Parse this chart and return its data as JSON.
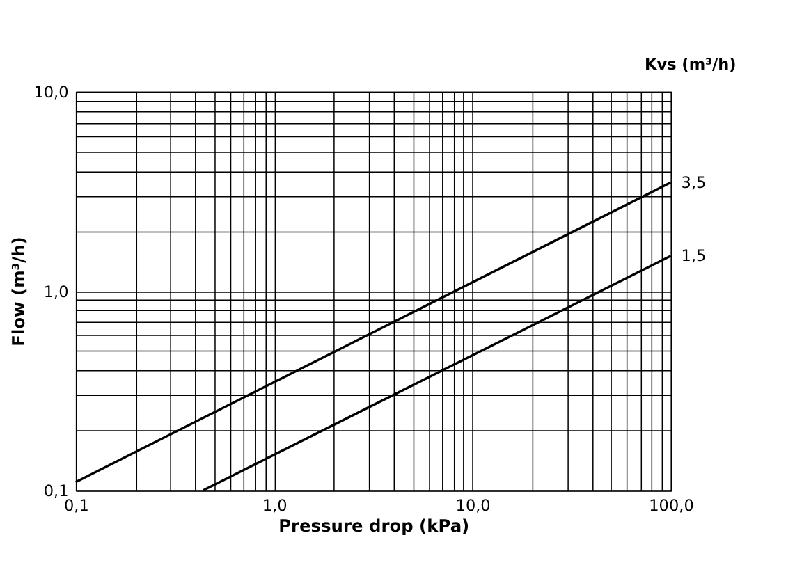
{
  "chart_data": {
    "type": "line",
    "xlabel": "Pressure drop (kPa)",
    "ylabel": "Flow (m³/h)",
    "legend_title": "Kvs (m³/h)",
    "log": "xy",
    "grid": true,
    "marker": "none",
    "line_style": "solid",
    "xlim": [
      0.1,
      100
    ],
    "ylim": [
      0.1,
      10
    ],
    "xticks": [
      {
        "value": 0.1,
        "label": "0,1"
      },
      {
        "value": 0.2,
        "label": null
      },
      {
        "value": 0.3,
        "label": null
      },
      {
        "value": 0.4,
        "label": null
      },
      {
        "value": 0.5,
        "label": null
      },
      {
        "value": 0.6,
        "label": null
      },
      {
        "value": 0.7,
        "label": null
      },
      {
        "value": 0.8,
        "label": null
      },
      {
        "value": 0.9,
        "label": null
      },
      {
        "value": 1,
        "label": "1,0"
      },
      {
        "value": 2,
        "label": null
      },
      {
        "value": 3,
        "label": null
      },
      {
        "value": 4,
        "label": null
      },
      {
        "value": 5,
        "label": null
      },
      {
        "value": 6,
        "label": null
      },
      {
        "value": 7,
        "label": null
      },
      {
        "value": 8,
        "label": null
      },
      {
        "value": 9,
        "label": null
      },
      {
        "value": 10,
        "label": "10,0"
      },
      {
        "value": 20,
        "label": null
      },
      {
        "value": 30,
        "label": null
      },
      {
        "value": 40,
        "label": null
      },
      {
        "value": 50,
        "label": null
      },
      {
        "value": 60,
        "label": null
      },
      {
        "value": 70,
        "label": null
      },
      {
        "value": 80,
        "label": null
      },
      {
        "value": 90,
        "label": null
      },
      {
        "value": 100,
        "label": "100,0"
      }
    ],
    "yticks": [
      {
        "value": 0.1,
        "label": "0,1"
      },
      {
        "value": 0.2,
        "label": null
      },
      {
        "value": 0.3,
        "label": null
      },
      {
        "value": 0.4,
        "label": null
      },
      {
        "value": 0.5,
        "label": null
      },
      {
        "value": 0.6,
        "label": null
      },
      {
        "value": 0.7,
        "label": null
      },
      {
        "value": 0.8,
        "label": null
      },
      {
        "value": 0.9,
        "label": null
      },
      {
        "value": 1,
        "label": "1,0"
      },
      {
        "value": 2,
        "label": null
      },
      {
        "value": 3,
        "label": null
      },
      {
        "value": 4,
        "label": null
      },
      {
        "value": 5,
        "label": null
      },
      {
        "value": 6,
        "label": null
      },
      {
        "value": 7,
        "label": null
      },
      {
        "value": 8,
        "label": null
      },
      {
        "value": 9,
        "label": null
      },
      {
        "value": 10,
        "label": "10,0"
      }
    ],
    "series": [
      {
        "name": "3,5",
        "color": "#000000",
        "x": [
          0.1,
          100
        ],
        "values": [
          0.11,
          3.5
        ]
      },
      {
        "name": "1,5",
        "color": "#000000",
        "x": [
          0.44,
          100
        ],
        "values": [
          0.1,
          1.5
        ]
      }
    ]
  }
}
